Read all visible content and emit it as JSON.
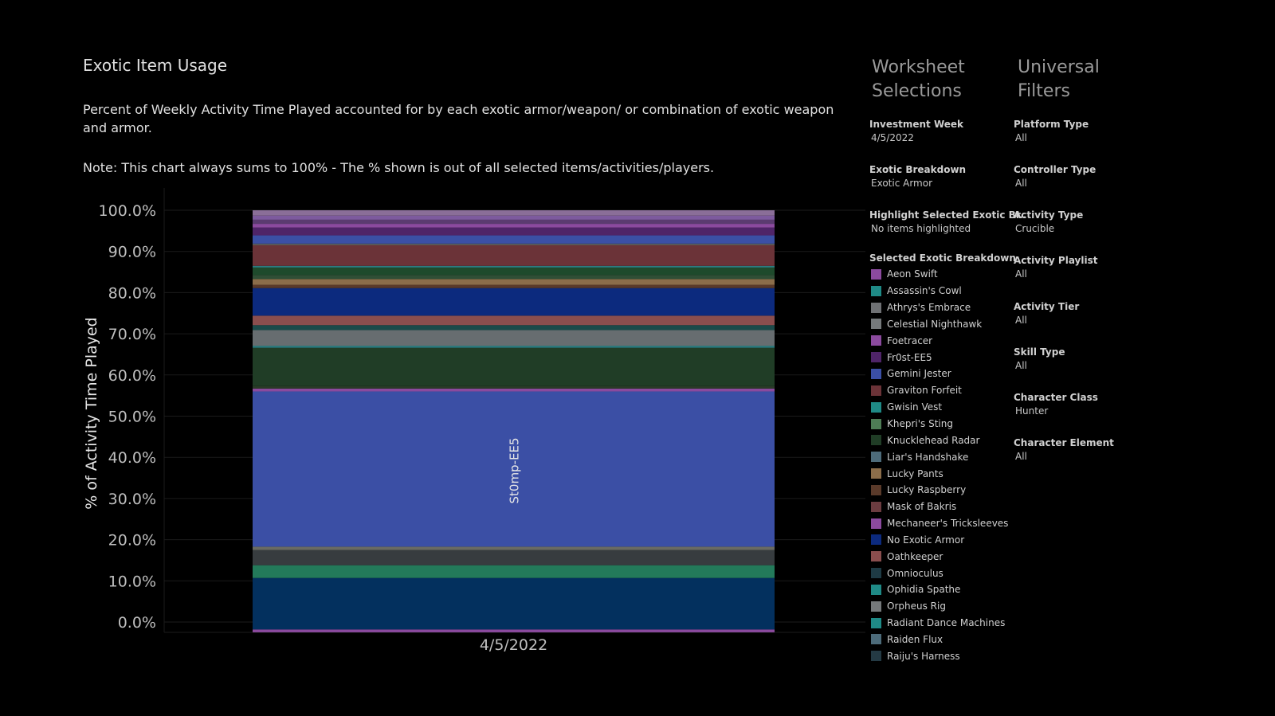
{
  "page": {
    "title": "Exotic Item Usage",
    "description": "Percent of Weekly Activity Time Played accounted for by each exotic armor/weapon/ or combination of exotic weapon and armor.",
    "note": "Note: This chart always sums to 100% - The % shown is out of all selected items/activities/players."
  },
  "chart_data": {
    "type": "bar",
    "stacked": true,
    "categories": [
      "4/5/2022"
    ],
    "ylabel": "% of Activity Time Played",
    "ylim": [
      -2.5,
      100
    ],
    "yticks": [
      "0.0%",
      "10.0%",
      "20.0%",
      "30.0%",
      "40.0%",
      "50.0%",
      "60.0%",
      "70.0%",
      "80.0%",
      "90.0%",
      "100.0%"
    ],
    "segment_label": "St0mp-EE5",
    "segments": [
      {
        "start": -2.5,
        "end": -1.8,
        "color": "#8b4a9e"
      },
      {
        "start": -1.8,
        "end": 10.7,
        "color": "#03305e"
      },
      {
        "start": 10.7,
        "end": 13.8,
        "color": "#237a5a"
      },
      {
        "start": 13.8,
        "end": 17.5,
        "color": "#373c3f"
      },
      {
        "start": 17.5,
        "end": 18.3,
        "color": "#6a6a62"
      },
      {
        "start": 18.3,
        "end": 56.0,
        "color": "#3b4fa5"
      },
      {
        "start": 56.0,
        "end": 56.7,
        "color": "#8b4a9e"
      },
      {
        "start": 56.7,
        "end": 57.3,
        "color": "#2a3b28"
      },
      {
        "start": 57.3,
        "end": 66.6,
        "color": "#203d26"
      },
      {
        "start": 66.6,
        "end": 67.1,
        "color": "#2c7d80"
      },
      {
        "start": 67.1,
        "end": 70.9,
        "color": "#676d70"
      },
      {
        "start": 70.9,
        "end": 72.1,
        "color": "#1b4a4a"
      },
      {
        "start": 72.1,
        "end": 74.4,
        "color": "#8a4e4e"
      },
      {
        "start": 74.4,
        "end": 81.1,
        "color": "#0c2a7e"
      },
      {
        "start": 81.1,
        "end": 81.9,
        "color": "#5a3a2a"
      },
      {
        "start": 81.9,
        "end": 83.3,
        "color": "#8b6d4a"
      },
      {
        "start": 83.3,
        "end": 84.3,
        "color": "#2f4f36"
      },
      {
        "start": 84.3,
        "end": 86.1,
        "color": "#1e4a2c"
      },
      {
        "start": 86.1,
        "end": 86.5,
        "color": "#2c7d80"
      },
      {
        "start": 86.5,
        "end": 91.5,
        "color": "#6b3338"
      },
      {
        "start": 91.5,
        "end": 91.9,
        "color": "#5a5a5a"
      },
      {
        "start": 91.9,
        "end": 93.9,
        "color": "#3b4fa5"
      },
      {
        "start": 93.9,
        "end": 95.8,
        "color": "#4f2468"
      },
      {
        "start": 95.8,
        "end": 96.7,
        "color": "#8b4a9e"
      },
      {
        "start": 96.7,
        "end": 97.7,
        "color": "#5b3b70"
      },
      {
        "start": 97.7,
        "end": 98.7,
        "color": "#7d5a9e"
      },
      {
        "start": 98.7,
        "end": 100.0,
        "color": "#8a6e98"
      }
    ]
  },
  "panel": {
    "worksheet_heading": [
      "Worksheet",
      "Selections"
    ],
    "universal_heading": [
      "Universal",
      "Filters"
    ],
    "worksheet_filters": [
      {
        "label": "Investment Week",
        "value": "4/5/2022"
      },
      {
        "label": "Exotic Breakdown",
        "value": "Exotic Armor"
      },
      {
        "label": "Highlight Selected Exotic Br..",
        "value": "No items highlighted"
      }
    ],
    "legend_title": "Selected Exotic Breakdown",
    "legend_items": [
      {
        "name": "Aeon Swift",
        "color": "#8b4a9e"
      },
      {
        "name": "Assassin's Cowl",
        "color": "#1f8a86"
      },
      {
        "name": "Athrys's Embrace",
        "color": "#6f7174"
      },
      {
        "name": "Celestial Nighthawk",
        "color": "#75797b"
      },
      {
        "name": "Foetracer",
        "color": "#8b4a9e"
      },
      {
        "name": "Fr0st-EE5",
        "color": "#4f2468"
      },
      {
        "name": "Gemini Jester",
        "color": "#3b4fa5"
      },
      {
        "name": "Graviton Forfeit",
        "color": "#6b3338"
      },
      {
        "name": "Gwisin Vest",
        "color": "#1f8a86"
      },
      {
        "name": "Khepri's Sting",
        "color": "#4e7c55"
      },
      {
        "name": "Knucklehead Radar",
        "color": "#203d26"
      },
      {
        "name": "Liar's Handshake",
        "color": "#4d6b7a"
      },
      {
        "name": "Lucky Pants",
        "color": "#8b6d4a"
      },
      {
        "name": "Lucky Raspberry",
        "color": "#5a3a2a"
      },
      {
        "name": "Mask of Bakris",
        "color": "#6b3c40"
      },
      {
        "name": "Mechaneer's Tricksleeves",
        "color": "#8b4a9e"
      },
      {
        "name": "No Exotic Armor",
        "color": "#0c2a7e"
      },
      {
        "name": "Oathkeeper",
        "color": "#8a4e4e"
      },
      {
        "name": "Omnioculus",
        "color": "#1e3a44"
      },
      {
        "name": "Ophidia Spathe",
        "color": "#1f8a86"
      },
      {
        "name": "Orpheus Rig",
        "color": "#75797b"
      },
      {
        "name": "Radiant Dance Machines",
        "color": "#1f8a86"
      },
      {
        "name": "Raiden Flux",
        "color": "#4d6b7a"
      },
      {
        "name": "Raiju's Harness",
        "color": "#243a44"
      },
      {
        "name": "",
        "color": "#3a3a3a"
      }
    ],
    "universal_filters": [
      {
        "label": "Platform Type",
        "value": "All"
      },
      {
        "label": "Controller Type",
        "value": "All"
      },
      {
        "label": "Activity Type",
        "value": "Crucible"
      },
      {
        "label": "Activity Playlist",
        "value": "All"
      },
      {
        "label": "Activity Tier",
        "value": "All"
      },
      {
        "label": "Skill Type",
        "value": "All"
      },
      {
        "label": "Character Class",
        "value": "Hunter"
      },
      {
        "label": "Character Element",
        "value": "All"
      }
    ]
  }
}
